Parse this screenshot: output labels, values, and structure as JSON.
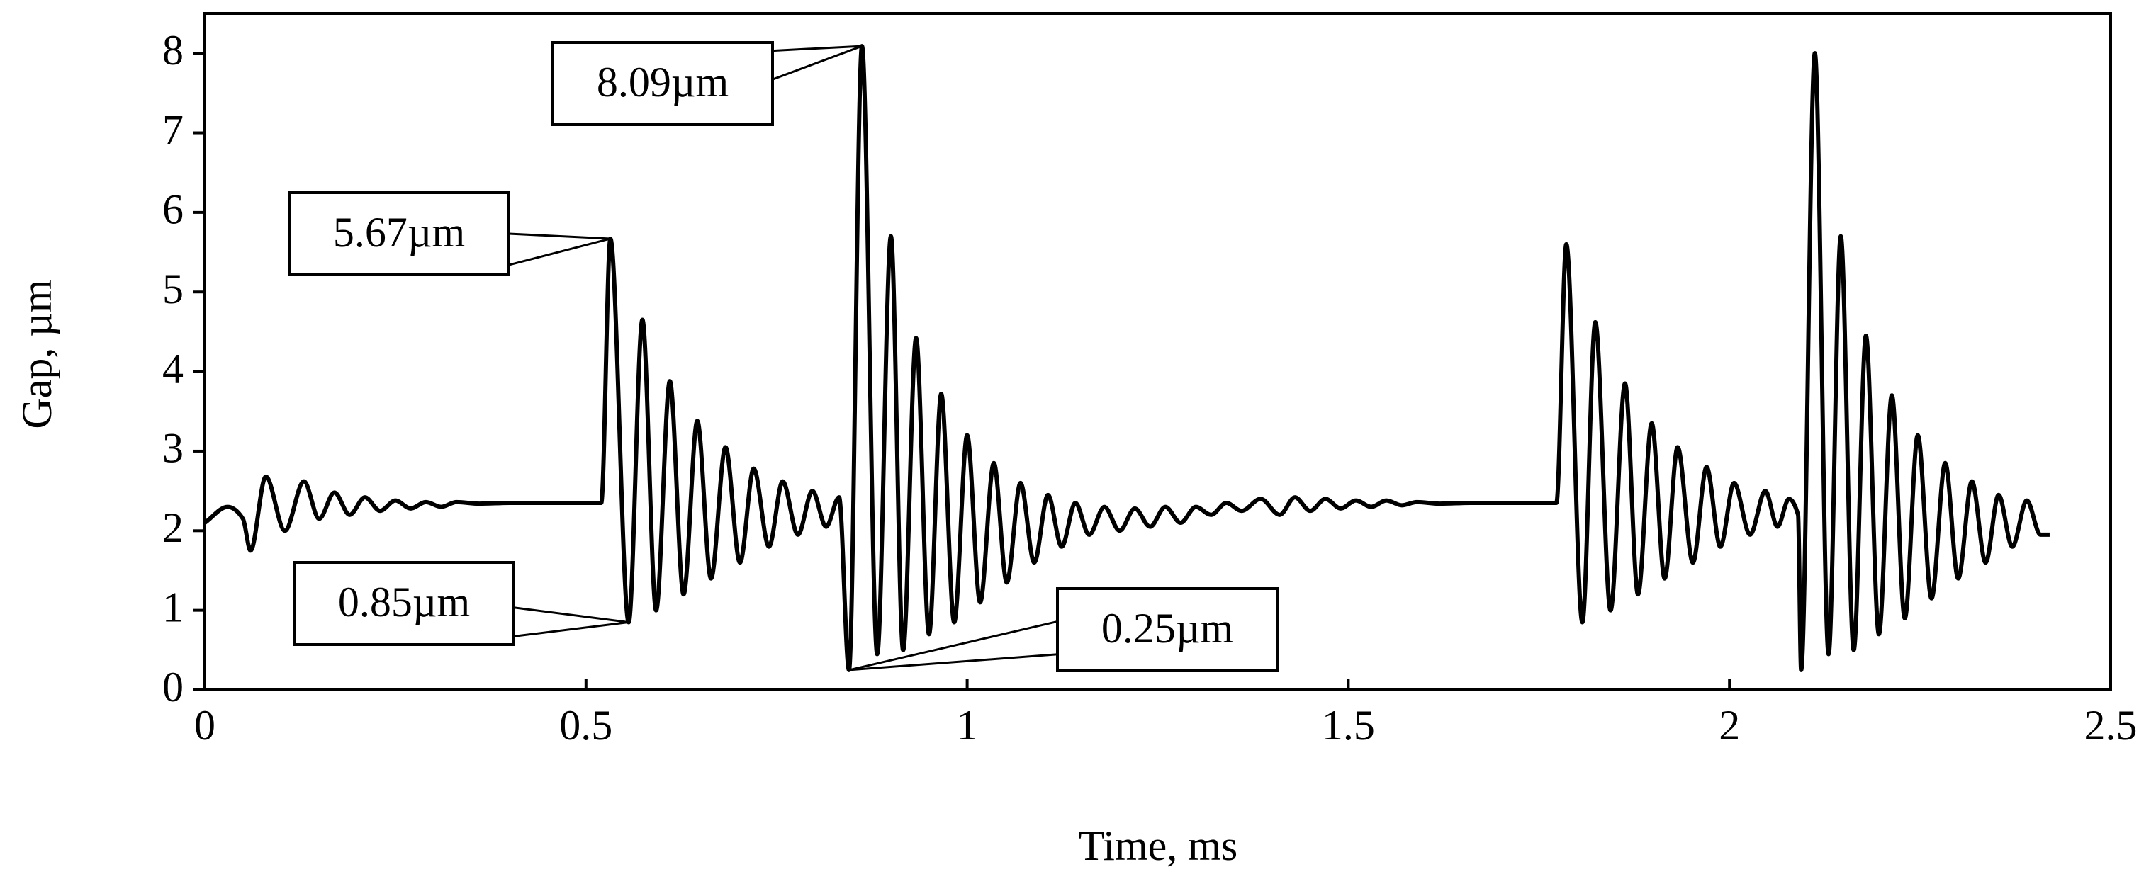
{
  "chart_data": {
    "type": "line",
    "xlabel": "Time, ms",
    "ylabel": "Gap, µm",
    "xlim": [
      0,
      2.5
    ],
    "xticks": [
      0,
      0.5,
      1,
      1.5,
      2,
      2.5
    ],
    "ylim": [
      0,
      8.5
    ],
    "yticks": [
      0,
      1,
      2,
      3,
      4,
      5,
      6,
      7,
      8
    ],
    "color": "#000000",
    "x": [
      0,
      0.03,
      0.05,
      0.06,
      0.08,
      0.105,
      0.13,
      0.15,
      0.17,
      0.19,
      0.21,
      0.23,
      0.25,
      0.27,
      0.29,
      0.31,
      0.33,
      0.36,
      0.4,
      0.52,
      0.532,
      0.556,
      0.574,
      0.592,
      0.61,
      0.628,
      0.646,
      0.664,
      0.683,
      0.702,
      0.72,
      0.74,
      0.758,
      0.778,
      0.797,
      0.815,
      0.832,
      0.845,
      0.862,
      0.882,
      0.9,
      0.916,
      0.933,
      0.95,
      0.966,
      0.983,
      1.0,
      1.017,
      1.035,
      1.052,
      1.07,
      1.088,
      1.106,
      1.124,
      1.142,
      1.16,
      1.18,
      1.2,
      1.22,
      1.24,
      1.26,
      1.28,
      1.3,
      1.32,
      1.34,
      1.36,
      1.385,
      1.41,
      1.43,
      1.45,
      1.47,
      1.49,
      1.51,
      1.53,
      1.55,
      1.57,
      1.59,
      1.62,
      1.66,
      1.773,
      1.786,
      1.807,
      1.824,
      1.844,
      1.863,
      1.88,
      1.898,
      1.915,
      1.932,
      1.952,
      1.97,
      1.988,
      2.006,
      2.027,
      2.047,
      2.063,
      2.078,
      2.09,
      2.094,
      2.112,
      2.13,
      2.146,
      2.163,
      2.179,
      2.196,
      2.213,
      2.23,
      2.247,
      2.265,
      2.283,
      2.3,
      2.318,
      2.336,
      2.353,
      2.371,
      2.39,
      2.408,
      2.42
    ],
    "values": [
      2.1,
      2.3,
      2.15,
      1.75,
      2.68,
      2.0,
      2.62,
      2.15,
      2.48,
      2.2,
      2.42,
      2.25,
      2.38,
      2.28,
      2.36,
      2.3,
      2.36,
      2.34,
      2.35,
      2.35,
      5.67,
      0.85,
      4.65,
      1.0,
      3.88,
      1.2,
      3.38,
      1.4,
      3.05,
      1.6,
      2.78,
      1.8,
      2.62,
      1.95,
      2.5,
      2.05,
      2.42,
      0.25,
      8.09,
      0.45,
      5.7,
      0.5,
      4.42,
      0.7,
      3.72,
      0.85,
      3.2,
      1.1,
      2.85,
      1.35,
      2.6,
      1.6,
      2.45,
      1.8,
      2.35,
      1.95,
      2.3,
      2.0,
      2.28,
      2.05,
      2.3,
      2.1,
      2.3,
      2.2,
      2.35,
      2.25,
      2.4,
      2.2,
      2.42,
      2.25,
      2.4,
      2.28,
      2.38,
      2.3,
      2.38,
      2.32,
      2.36,
      2.34,
      2.35,
      2.35,
      5.6,
      0.85,
      4.62,
      1.0,
      3.85,
      1.2,
      3.35,
      1.4,
      3.05,
      1.6,
      2.8,
      1.8,
      2.6,
      1.95,
      2.5,
      2.05,
      2.4,
      2.2,
      0.25,
      8.0,
      0.45,
      5.7,
      0.5,
      4.45,
      0.7,
      3.7,
      0.9,
      3.2,
      1.15,
      2.85,
      1.4,
      2.62,
      1.6,
      2.45,
      1.8,
      2.38,
      1.95,
      1.95
    ],
    "annotations": [
      {
        "text": "5.67µm",
        "x": 0.532,
        "y": 5.67
      },
      {
        "text": "8.09µm",
        "x": 0.862,
        "y": 8.09
      },
      {
        "text": "0.85µm",
        "x": 0.556,
        "y": 0.85
      },
      {
        "text": "0.25µm",
        "x": 0.845,
        "y": 0.25
      }
    ]
  }
}
